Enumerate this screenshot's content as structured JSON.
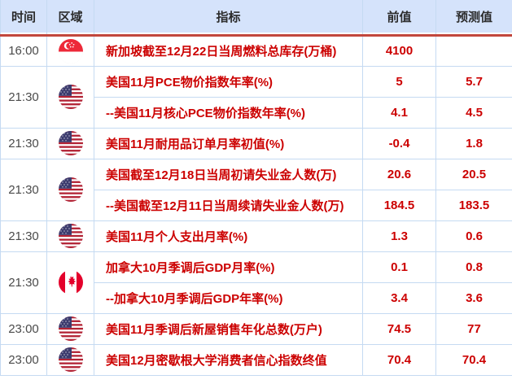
{
  "colors": {
    "header_bg": "#d5e3fb",
    "cell_border": "#c5daf2",
    "header_divider_red": "#c2473d",
    "value_text_red": "#cc0000",
    "time_text": "#4a4a4a"
  },
  "header": {
    "time": "时间",
    "region": "区域",
    "indicator": "指标",
    "previous": "前值",
    "forecast": "预测值"
  },
  "rows": [
    {
      "time": "16:00",
      "region": "singapore",
      "flag_icon": "singapore-flag-icon",
      "entries": [
        {
          "indicator": "新加坡截至12月22日当周燃料总库存(万桶)",
          "previous": "4100",
          "forecast": ""
        }
      ]
    },
    {
      "time": "21:30",
      "region": "united-states",
      "flag_icon": "united-states-flag-icon",
      "entries": [
        {
          "indicator": "美国11月PCE物价指数年率(%)",
          "previous": "5",
          "forecast": "5.7"
        },
        {
          "indicator": "--美国11月核心PCE物价指数年率(%)",
          "previous": "4.1",
          "forecast": "4.5"
        }
      ]
    },
    {
      "time": "21:30",
      "region": "united-states",
      "flag_icon": "united-states-flag-icon",
      "entries": [
        {
          "indicator": "美国11月耐用品订单月率初值(%)",
          "previous": "-0.4",
          "forecast": "1.8"
        }
      ]
    },
    {
      "time": "21:30",
      "region": "united-states",
      "flag_icon": "united-states-flag-icon",
      "entries": [
        {
          "indicator": "美国截至12月18日当周初请失业金人数(万)",
          "previous": "20.6",
          "forecast": "20.5"
        },
        {
          "indicator": "--美国截至12月11日当周续请失业金人数(万)",
          "previous": "184.5",
          "forecast": "183.5"
        }
      ]
    },
    {
      "time": "21:30",
      "region": "united-states",
      "flag_icon": "united-states-flag-icon",
      "entries": [
        {
          "indicator": "美国11月个人支出月率(%)",
          "previous": "1.3",
          "forecast": "0.6"
        }
      ]
    },
    {
      "time": "21:30",
      "region": "canada",
      "flag_icon": "canada-flag-icon",
      "entries": [
        {
          "indicator": "加拿大10月季调后GDP月率(%)",
          "previous": "0.1",
          "forecast": "0.8"
        },
        {
          "indicator": "--加拿大10月季调后GDP年率(%)",
          "previous": "3.4",
          "forecast": "3.6"
        }
      ]
    },
    {
      "time": "23:00",
      "region": "united-states",
      "flag_icon": "united-states-flag-icon",
      "entries": [
        {
          "indicator": "美国11月季调后新屋销售年化总数(万户)",
          "previous": "74.5",
          "forecast": "77"
        }
      ]
    },
    {
      "time": "23:00",
      "region": "united-states",
      "flag_icon": "united-states-flag-icon",
      "entries": [
        {
          "indicator": "美国12月密歇根大学消费者信心指数终值",
          "previous": "70.4",
          "forecast": "70.4"
        }
      ]
    }
  ]
}
